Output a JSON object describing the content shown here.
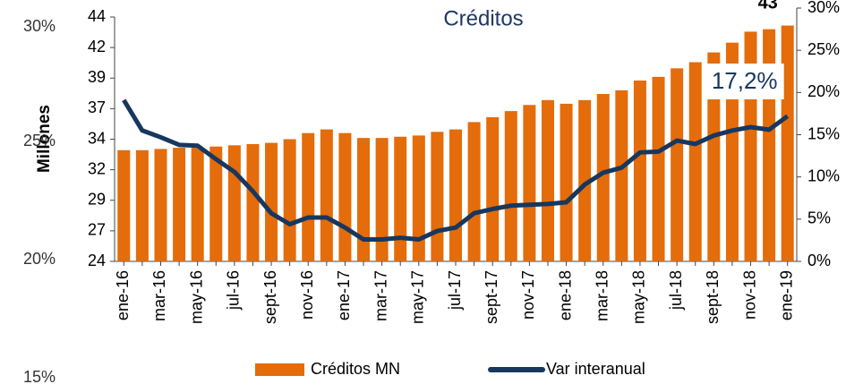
{
  "chart_data": {
    "type": "bar_line",
    "title": "Créditos",
    "ylabel": "Millones",
    "background_labels": [
      "30%",
      "25%",
      "20%",
      "15%"
    ],
    "categories": [
      "ene-16",
      null,
      "mar-16",
      null,
      "may-16",
      null,
      "jul-16",
      null,
      "sept-16",
      null,
      "nov-16",
      null,
      "ene-17",
      null,
      "mar-17",
      null,
      "may-17",
      null,
      "jul-17",
      null,
      "sept-17",
      null,
      "nov-17",
      null,
      "ene-18",
      null,
      "mar-18",
      null,
      "may-18",
      null,
      "jul-18",
      null,
      "sept-18",
      null,
      "nov-18",
      null,
      "ene-19"
    ],
    "series": [
      {
        "name": "Créditos MN",
        "color": "#e46c0a",
        "axis": "y",
        "values": [
          33.1,
          33.1,
          33.2,
          33.3,
          33.3,
          33.4,
          33.5,
          33.6,
          33.7,
          34.0,
          34.5,
          34.8,
          34.5,
          34.1,
          34.1,
          34.2,
          34.3,
          34.6,
          34.8,
          35.4,
          35.8,
          36.3,
          36.8,
          37.2,
          36.9,
          37.2,
          37.7,
          38.0,
          38.8,
          39.1,
          39.8,
          40.3,
          41.1,
          41.9,
          42.8,
          43.0,
          43.3
        ],
        "value_labels": [
          null,
          null,
          null,
          null,
          null,
          null,
          null,
          null,
          null,
          null,
          null,
          null,
          null,
          null,
          null,
          null,
          null,
          null,
          null,
          null,
          null,
          null,
          null,
          null,
          null,
          null,
          null,
          null,
          null,
          null,
          null,
          null,
          null,
          null,
          null,
          null,
          "43"
        ]
      },
      {
        "name": "Var interanual",
        "color": "#17375e",
        "axis": "y2",
        "values": [
          19.1,
          15.5,
          14.7,
          13.8,
          13.7,
          12.1,
          10.6,
          8.3,
          5.7,
          4.4,
          5.2,
          5.2,
          4.0,
          2.6,
          2.6,
          2.8,
          2.6,
          3.6,
          4.0,
          5.7,
          6.2,
          6.6,
          6.7,
          6.8,
          7.0,
          9.1,
          10.5,
          11.1,
          12.9,
          13.0,
          14.3,
          13.9,
          14.9,
          15.5,
          15.9,
          15.6,
          17.2
        ],
        "value_labels": [
          null,
          null,
          null,
          null,
          null,
          null,
          null,
          null,
          null,
          null,
          null,
          null,
          null,
          null,
          null,
          null,
          null,
          null,
          null,
          null,
          null,
          null,
          null,
          null,
          null,
          null,
          null,
          null,
          null,
          null,
          null,
          null,
          null,
          null,
          null,
          null,
          "17,2%"
        ]
      }
    ],
    "ylim": [
      24,
      44
    ],
    "yticks": [
      24,
      {
        "value": 26.5,
        "label": "27"
      },
      29,
      {
        "value": 31.5,
        "label": "32"
      },
      34,
      {
        "value": 36.5,
        "label": "37"
      },
      39,
      {
        "value": 41.5,
        "label": "42"
      },
      44
    ],
    "y2lim": [
      0,
      30
    ],
    "y2ticks": [
      {
        "value": 0,
        "label": "0%"
      },
      {
        "value": 5,
        "label": "5%"
      },
      {
        "value": 10,
        "label": "10%"
      },
      {
        "value": 15,
        "label": "15%"
      },
      {
        "value": 20,
        "label": "20%"
      },
      {
        "value": 25,
        "label": "25%"
      },
      {
        "value": 30,
        "label": "30%"
      }
    ],
    "legend": "bottom"
  }
}
